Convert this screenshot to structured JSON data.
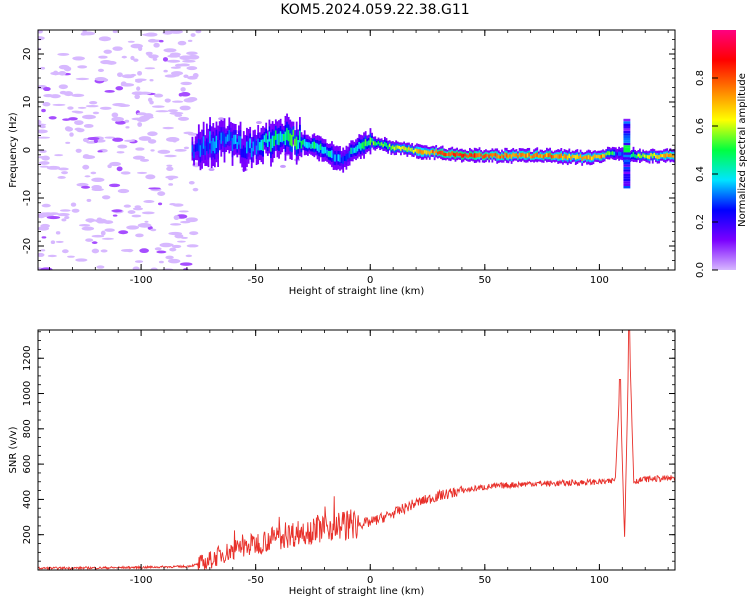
{
  "title": "KOM5.2024.059.22.38.G11",
  "chart_data": [
    {
      "type": "heatmap",
      "title": "KOM5.2024.059.22.38.G11",
      "xlabel": "Height of straight line (km)",
      "ylabel": "Frequency (Hz)",
      "xlim": [
        -145,
        133
      ],
      "ylim": [
        -25,
        25
      ],
      "xticks": [
        -100,
        -50,
        0,
        50,
        100
      ],
      "yticks": [
        -20,
        -10,
        0,
        10,
        20
      ],
      "colorbar": {
        "label": "Normalized spectral amplitude",
        "range": [
          0,
          1
        ],
        "ticks": [
          "0.0",
          "0.2",
          "0.4",
          "0.6",
          "0.8"
        ],
        "colors": [
          "#d7b8ff",
          "#7a00ff",
          "#0000ff",
          "#00e5ff",
          "#00ff40",
          "#ffff00",
          "#ff8000",
          "#ff0000",
          "#ff0080"
        ]
      },
      "ridge": {
        "x": [
          -78,
          -70,
          -62,
          -55,
          -48,
          -40,
          -34,
          -28,
          -22,
          -16,
          -12,
          -8,
          -4,
          0,
          5,
          10,
          20,
          30,
          40,
          50,
          60,
          70,
          80,
          90,
          100,
          105,
          108,
          112,
          116,
          120,
          133
        ],
        "y": [
          0,
          1.5,
          2.5,
          0,
          1.5,
          2,
          2.5,
          1,
          0.5,
          -1.5,
          -2,
          0,
          1,
          1.8,
          1.2,
          0.5,
          -0.2,
          -0.6,
          -1,
          -1.2,
          -1.2,
          -1.2,
          -1.3,
          -1.6,
          -1.4,
          -0.6,
          -0.8,
          -1,
          -1.2,
          -1.2,
          -1.3
        ],
        "amplitude": [
          0.25,
          0.3,
          0.35,
          0.3,
          0.4,
          0.45,
          0.5,
          0.45,
          0.45,
          0.35,
          0.3,
          0.4,
          0.45,
          0.55,
          0.5,
          0.55,
          0.65,
          0.8,
          0.8,
          0.8,
          0.75,
          0.7,
          0.75,
          0.65,
          0.75,
          0.5,
          0.25,
          0.4,
          0.55,
          0.6,
          0.75
        ]
      },
      "spike": {
        "x": 112,
        "y_range": [
          -8,
          6
        ]
      }
    },
    {
      "type": "line",
      "xlabel": "Height of straight line (km)",
      "ylabel": "SNR (v/v)",
      "xlim": [
        -145,
        133
      ],
      "ylim": [
        0,
        1360
      ],
      "xticks": [
        -100,
        -50,
        0,
        50,
        100
      ],
      "yticks": [
        200,
        400,
        600,
        800,
        1000,
        1200
      ],
      "color": "#e8302a",
      "x": [
        -145,
        -120,
        -100,
        -80,
        -72,
        -65,
        -55,
        -45,
        -35,
        -25,
        -15,
        -5,
        0,
        10,
        20,
        30,
        40,
        50,
        60,
        70,
        80,
        90,
        100,
        105,
        107,
        109,
        111,
        113,
        115,
        120,
        133
      ],
      "y": [
        10,
        12,
        15,
        20,
        40,
        90,
        130,
        170,
        200,
        230,
        250,
        260,
        270,
        320,
        380,
        420,
        450,
        470,
        480,
        490,
        490,
        495,
        500,
        500,
        520,
        1080,
        180,
        1360,
        500,
        515,
        520
      ]
    }
  ]
}
